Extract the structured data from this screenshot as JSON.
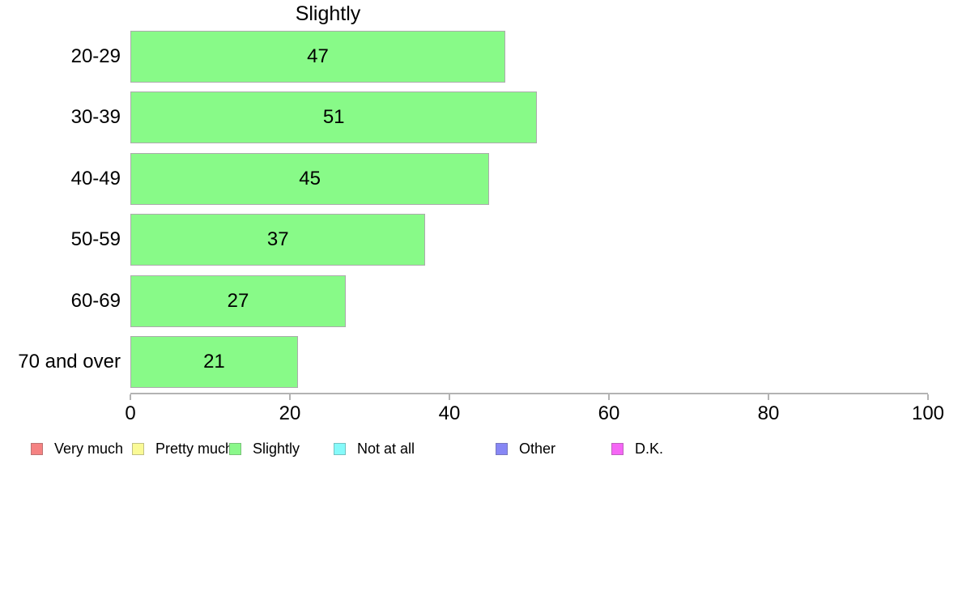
{
  "title": "Slightly",
  "chart_data": {
    "type": "bar",
    "orientation": "horizontal",
    "title": "Slightly",
    "categories": [
      "20-29",
      "30-39",
      "40-49",
      "50-59",
      "60-69",
      "70 and over"
    ],
    "values": [
      47,
      51,
      45,
      37,
      27,
      21
    ],
    "xlabel": "",
    "ylabel": "",
    "xlim": [
      0,
      100
    ],
    "x_ticks": [
      "0",
      "20",
      "40",
      "60",
      "80",
      "100"
    ],
    "grid": false,
    "value_labels": "centered-in-bar",
    "bar_fill": "#88FA88",
    "bar_border": "#ABABAB",
    "axis_color": "#B3B3B3",
    "text_color": "#000000",
    "legend_position": "bottom"
  },
  "legend": {
    "items": [
      {
        "label": "Very much",
        "fill": "#F58282",
        "border": "#BC7474"
      },
      {
        "label": "Pretty much",
        "fill": "#FAFA96",
        "border": "#C0C084"
      },
      {
        "label": "Slightly",
        "fill": "#8AF88A",
        "border": "#79C279"
      },
      {
        "label": "Not at all",
        "fill": "#85FAFA",
        "border": "#74C2C2"
      },
      {
        "label": "Other",
        "fill": "#8787F5",
        "border": "#7878BE"
      },
      {
        "label": "D.K.",
        "fill": "#F566F5",
        "border": "#BE62BE"
      }
    ]
  }
}
